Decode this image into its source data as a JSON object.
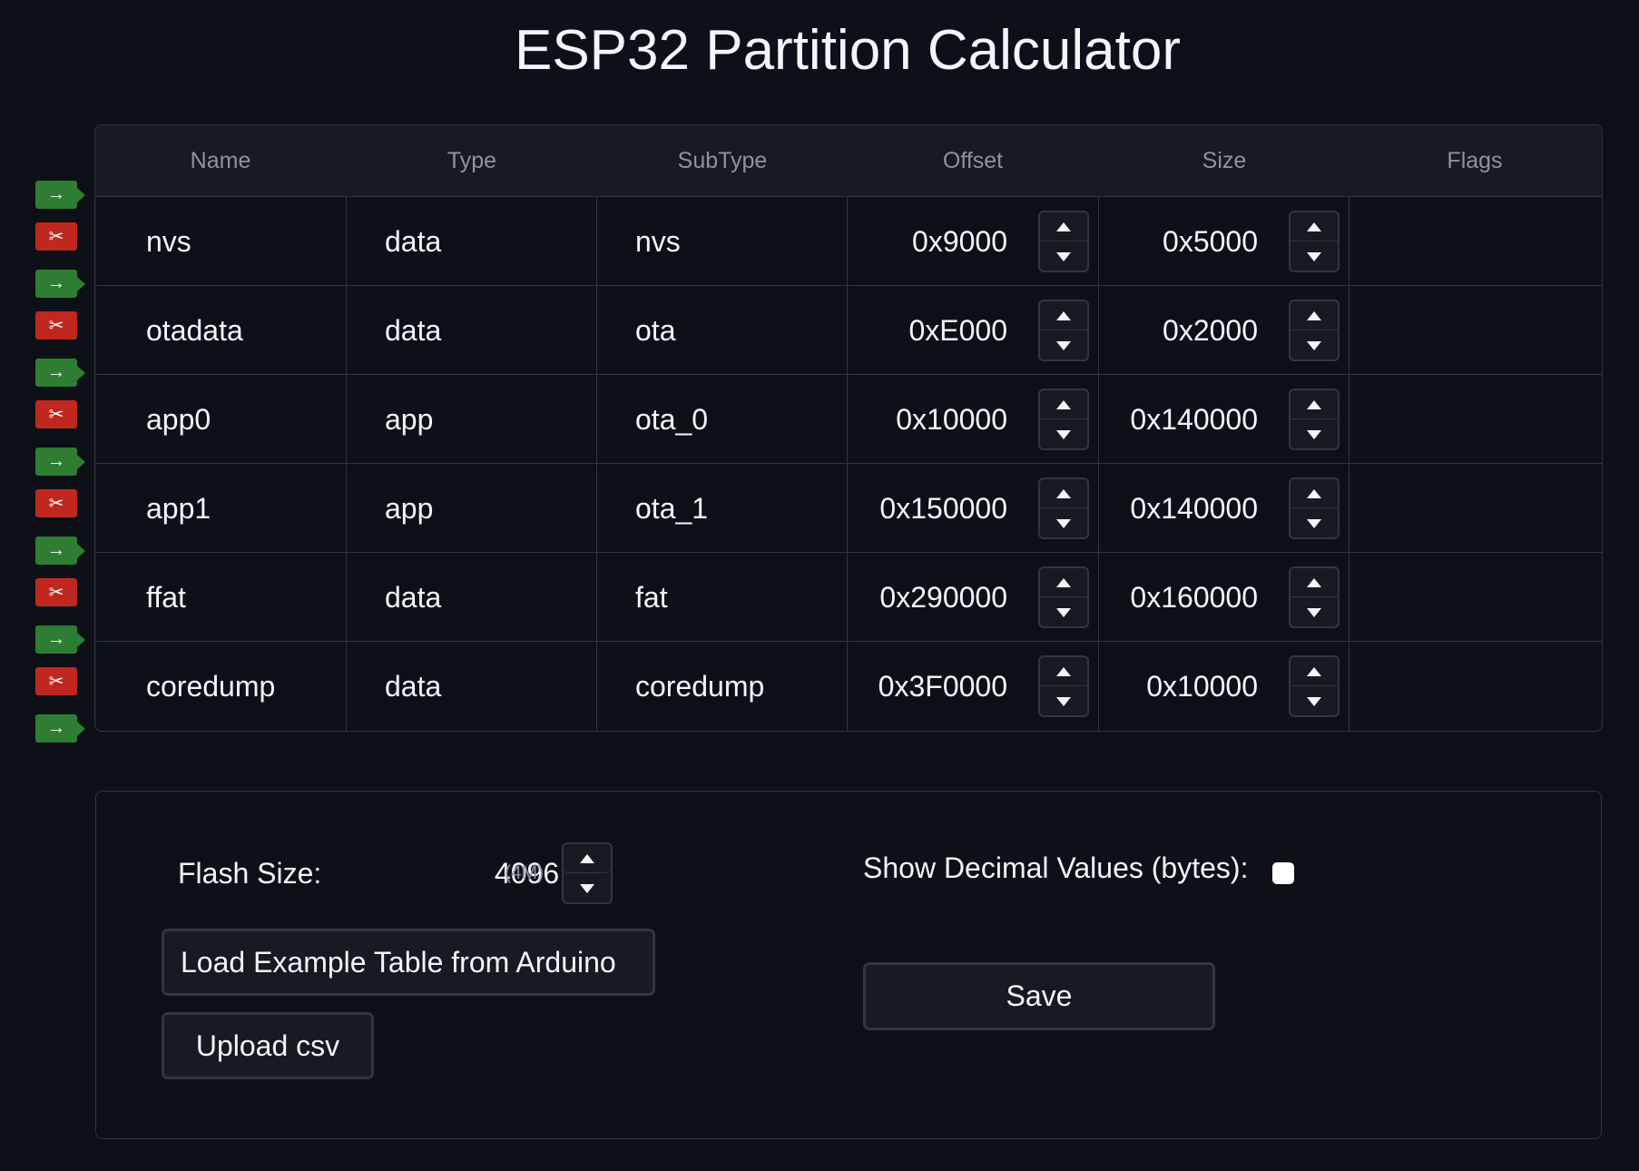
{
  "title": "ESP32 Partition Calculator",
  "table": {
    "headers": [
      "Name",
      "Type",
      "SubType",
      "Offset",
      "Size",
      "Flags"
    ],
    "rows": [
      {
        "name": "nvs",
        "type": "data",
        "subtype": "nvs",
        "offset": "0x9000",
        "size": "0x5000",
        "flags": ""
      },
      {
        "name": "otadata",
        "type": "data",
        "subtype": "ota",
        "offset": "0xE000",
        "size": "0x2000",
        "flags": ""
      },
      {
        "name": "app0",
        "type": "app",
        "subtype": "ota_0",
        "offset": "0x10000",
        "size": "0x140000",
        "flags": ""
      },
      {
        "name": "app1",
        "type": "app",
        "subtype": "ota_1",
        "offset": "0x150000",
        "size": "0x140000",
        "flags": ""
      },
      {
        "name": "ffat",
        "type": "data",
        "subtype": "fat",
        "offset": "0x290000",
        "size": "0x160000",
        "flags": ""
      },
      {
        "name": "coredump",
        "type": "data",
        "subtype": "coredump",
        "offset": "0x3F0000",
        "size": "0x10000",
        "flags": ""
      }
    ]
  },
  "side_controls": {
    "insert_icon": "→",
    "remove_icon": "✂",
    "insert_color": "#2e7d32",
    "remove_color": "#c0281f"
  },
  "settings": {
    "flash_size_label": "Flash Size:",
    "flash_size_value": "4096",
    "flash_size_unit": "k",
    "flash_size_mb": "(4M)",
    "load_example_label": "Load Example Table from Arduino",
    "upload_csv_label": "Upload csv",
    "decimal_label": "Show Decimal Values (bytes):",
    "decimal_checked": false,
    "save_label": "Save"
  }
}
